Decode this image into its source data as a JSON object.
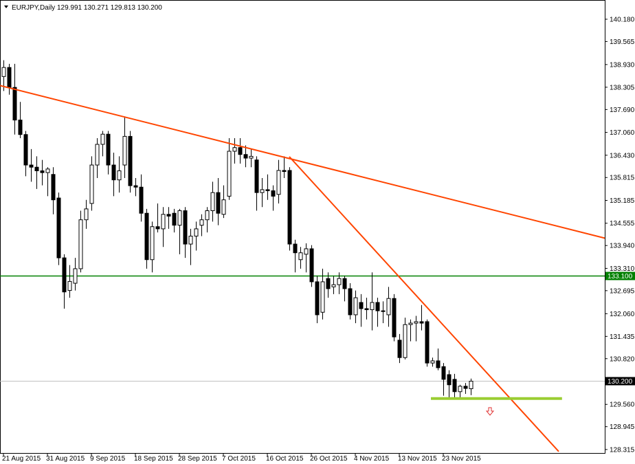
{
  "chart_data": {
    "type": "candlestick",
    "title": "EURJPY,Daily 129.991 130.271 129.813 130.200",
    "categories": [
      "21 Aug 2015",
      null,
      null,
      null,
      null,
      null,
      null,
      null,
      "31 Aug 2015",
      null,
      null,
      null,
      null,
      null,
      null,
      null,
      "9 Sep 2015",
      null,
      null,
      null,
      null,
      null,
      null,
      null,
      "18 Sep 2015",
      null,
      null,
      null,
      null,
      null,
      null,
      null,
      "28 Sep 2015",
      null,
      null,
      null,
      null,
      null,
      null,
      null,
      "7 Oct 2015",
      null,
      null,
      null,
      null,
      null,
      null,
      null,
      "16 Oct 2015",
      null,
      null,
      null,
      null,
      null,
      null,
      null,
      "26 Oct 2015",
      null,
      null,
      null,
      null,
      null,
      null,
      null,
      "4 Nov 2015",
      null,
      null,
      null,
      null,
      null,
      null,
      null,
      "13 Nov 2015",
      null,
      null,
      null,
      null,
      null,
      null,
      null,
      "23 Nov 2015",
      null,
      null,
      null,
      null,
      null
    ],
    "ohlc": [
      [
        138.6,
        139.05,
        138.2,
        138.85
      ],
      [
        138.85,
        138.95,
        138.1,
        138.3
      ],
      [
        138.3,
        138.95,
        137.0,
        137.4
      ],
      [
        137.4,
        137.9,
        136.9,
        137.0
      ],
      [
        137.0,
        137.1,
        135.85,
        136.16
      ],
      [
        136.16,
        136.6,
        135.7,
        136.1
      ],
      [
        136.1,
        136.4,
        135.5,
        136.0
      ],
      [
        136.0,
        136.3,
        135.6,
        135.95
      ],
      [
        135.95,
        136.1,
        135.3,
        136.05
      ],
      [
        135.9,
        136.1,
        134.8,
        135.2
      ],
      [
        135.25,
        135.4,
        133.4,
        133.6
      ],
      [
        133.6,
        133.7,
        132.2,
        132.66
      ],
      [
        132.7,
        133.4,
        132.5,
        132.95
      ],
      [
        132.9,
        133.6,
        132.7,
        133.3
      ],
      [
        133.3,
        134.9,
        133.2,
        134.65
      ],
      [
        134.65,
        135.2,
        134.4,
        134.95
      ],
      [
        135.1,
        136.4,
        134.9,
        136.16
      ],
      [
        136.16,
        136.9,
        135.8,
        136.73
      ],
      [
        136.73,
        137.1,
        136.4,
        137.01
      ],
      [
        137.01,
        137.1,
        135.9,
        136.16
      ],
      [
        136.16,
        136.5,
        135.3,
        135.75
      ],
      [
        135.75,
        136.4,
        135.4,
        136.0
      ],
      [
        136.16,
        137.5,
        135.8,
        136.95
      ],
      [
        136.95,
        137.1,
        135.4,
        135.59
      ],
      [
        135.59,
        135.8,
        135.3,
        135.55
      ],
      [
        135.55,
        135.9,
        134.6,
        134.83
      ],
      [
        134.83,
        134.95,
        133.3,
        133.55
      ],
      [
        133.55,
        134.6,
        133.2,
        134.46
      ],
      [
        134.46,
        135.1,
        134.3,
        134.4
      ],
      [
        134.4,
        135.0,
        133.9,
        134.8
      ],
      [
        134.8,
        135.0,
        134.4,
        134.75
      ],
      [
        134.83,
        134.95,
        134.3,
        134.5
      ],
      [
        134.5,
        134.95,
        133.7,
        134.9
      ],
      [
        134.9,
        135.0,
        133.6,
        133.98
      ],
      [
        133.98,
        134.4,
        133.4,
        134.2
      ],
      [
        134.2,
        134.6,
        133.8,
        134.4
      ],
      [
        134.5,
        134.8,
        134.2,
        134.65
      ],
      [
        134.65,
        135.0,
        134.3,
        134.9
      ],
      [
        134.9,
        135.7,
        134.6,
        135.4
      ],
      [
        135.4,
        135.8,
        134.5,
        134.83
      ],
      [
        134.8,
        135.6,
        134.7,
        135.2
      ],
      [
        135.3,
        136.9,
        135.2,
        136.54
      ],
      [
        136.54,
        136.9,
        136.2,
        136.64
      ],
      [
        136.64,
        136.9,
        136.2,
        136.45
      ],
      [
        136.45,
        136.7,
        136.1,
        136.35
      ],
      [
        136.35,
        136.6,
        136.1,
        136.4
      ],
      [
        136.3,
        136.4,
        134.9,
        135.4
      ],
      [
        135.4,
        135.8,
        135.0,
        135.48
      ],
      [
        135.48,
        135.9,
        135.2,
        135.45
      ],
      [
        135.45,
        135.6,
        134.9,
        135.3
      ],
      [
        135.35,
        136.3,
        135.1,
        136.01
      ],
      [
        136.01,
        136.4,
        135.8,
        135.98
      ],
      [
        136.01,
        136.1,
        133.8,
        133.98
      ],
      [
        133.98,
        134.1,
        133.2,
        133.74
      ],
      [
        133.55,
        133.9,
        133.3,
        133.74
      ],
      [
        133.7,
        134.0,
        133.2,
        133.85
      ],
      [
        133.85,
        133.95,
        132.8,
        132.94
      ],
      [
        132.94,
        133.1,
        131.8,
        132.03
      ],
      [
        132.1,
        133.3,
        131.9,
        132.94
      ],
      [
        133.03,
        133.2,
        132.5,
        132.75
      ],
      [
        132.8,
        133.1,
        132.6,
        132.86
      ],
      [
        132.86,
        133.2,
        132.6,
        133.03
      ],
      [
        133.03,
        133.1,
        132.4,
        132.75
      ],
      [
        132.75,
        132.9,
        131.9,
        132.03
      ],
      [
        132.03,
        132.7,
        131.8,
        132.5
      ],
      [
        132.37,
        132.6,
        131.7,
        132.2
      ],
      [
        132.2,
        132.5,
        131.9,
        132.17
      ],
      [
        132.17,
        133.2,
        131.6,
        132.37
      ],
      [
        132.37,
        132.5,
        131.7,
        132.14
      ],
      [
        132.14,
        132.4,
        131.8,
        132.12
      ],
      [
        132.03,
        132.8,
        131.7,
        132.48
      ],
      [
        132.48,
        132.6,
        131.3,
        131.42
      ],
      [
        131.33,
        131.5,
        130.7,
        130.85
      ],
      [
        130.85,
        131.95,
        130.8,
        131.76
      ],
      [
        131.76,
        131.9,
        131.3,
        131.8
      ],
      [
        131.8,
        132.0,
        131.3,
        131.84
      ],
      [
        131.84,
        132.3,
        131.6,
        131.8
      ],
      [
        131.84,
        131.9,
        130.6,
        130.7
      ],
      [
        130.7,
        130.85,
        130.6,
        130.76
      ],
      [
        130.76,
        131.1,
        130.5,
        130.57
      ],
      [
        130.6,
        130.7,
        129.8,
        130.25
      ],
      [
        130.38,
        130.5,
        129.7,
        130.1
      ],
      [
        130.25,
        130.4,
        129.7,
        129.91
      ],
      [
        129.91,
        130.1,
        129.7,
        130.06
      ],
      [
        130.06,
        130.15,
        129.85,
        130.0
      ],
      [
        129.991,
        130.271,
        129.813,
        130.2
      ]
    ],
    "ylim": [
      128.2,
      140.71
    ],
    "yticks": [
      {
        "value": 140.18,
        "label": "140.180"
      },
      139.565,
      {
        "value": 138.93,
        "label": "138.930"
      },
      138.305,
      {
        "value": 137.69,
        "label": "137.690"
      },
      {
        "value": 137.06,
        "label": "137.060"
      },
      {
        "value": 136.43,
        "label": "136.430"
      },
      135.815,
      135.185,
      134.555,
      {
        "value": 133.94,
        "label": "133.940"
      },
      {
        "value": 133.31,
        "label": "133.310"
      },
      132.695,
      {
        "value": 132.06,
        "label": "132.060"
      },
      131.435,
      {
        "value": 130.82,
        "label": "130.820"
      },
      {
        "value": 129.56,
        "label": "129.560"
      },
      128.945,
      128.315
    ],
    "hlines": [
      {
        "price": 133.1,
        "label": "133.100",
        "color": "#008000"
      },
      {
        "price": 130.2,
        "label": "130.200",
        "color": "#c0c0c0"
      }
    ],
    "trendlines": [
      {
        "points": [
          [
            -0.6,
            138.35
          ],
          [
            110,
            134.12
          ]
        ],
        "color": "#ff4500",
        "width": 2
      },
      {
        "points": [
          [
            52,
            136.39
          ],
          [
            101,
            128.26
          ]
        ],
        "color": "#ff4500",
        "width": 2
      },
      {
        "points": [
          [
            77.75,
            129.72
          ],
          [
            101.6,
            129.72
          ]
        ],
        "color": "#9acd32",
        "width": 4
      }
    ]
  }
}
